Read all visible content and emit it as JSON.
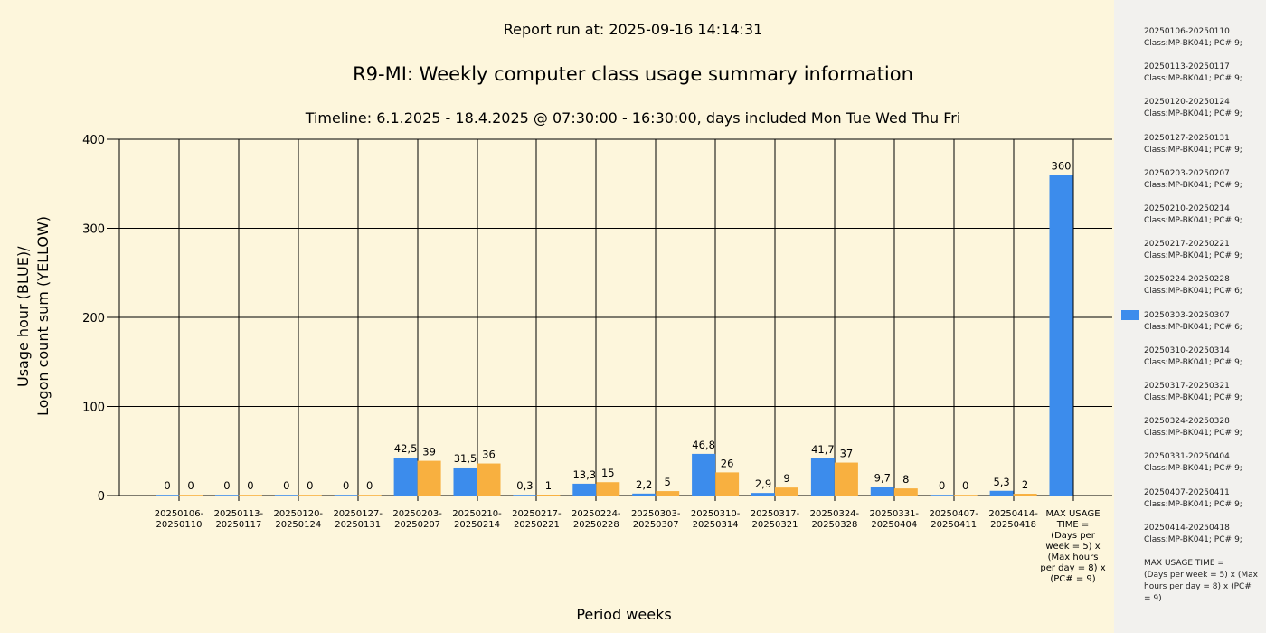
{
  "report_run": "Report run at: 2025-09-16 14:14:31",
  "chart_data": {
    "type": "bar",
    "title": "R9-MI: Weekly computer class usage summary information",
    "subtitle": "Timeline:  6.1.2025  - 18.4.2025  @  07:30:00 -  16:30:00, days included Mon Tue Wed Thu Fri",
    "xlabel": "Period weeks",
    "ylabel_line1": "Usage hour (BLUE)/",
    "ylabel_line2": "Logon count sum (YELLOW)",
    "ylim": [
      0,
      400
    ],
    "yticks": [
      "0",
      "100",
      "200",
      "300",
      "400"
    ],
    "categories": [
      [
        "20250106-",
        "20250110"
      ],
      [
        "20250113-",
        "20250117"
      ],
      [
        "20250120-",
        "20250124"
      ],
      [
        "20250127-",
        "20250131"
      ],
      [
        "20250203-",
        "20250207"
      ],
      [
        "20250210-",
        "20250214"
      ],
      [
        "20250217-",
        "20250221"
      ],
      [
        "20250224-",
        "20250228"
      ],
      [
        "20250303-",
        "20250307"
      ],
      [
        "20250310-",
        "20250314"
      ],
      [
        "20250317-",
        "20250321"
      ],
      [
        "20250324-",
        "20250328"
      ],
      [
        "20250331-",
        "20250404"
      ],
      [
        "20250407-",
        "20250411"
      ],
      [
        "20250414-",
        "20250418"
      ],
      [
        "MAX USAGE",
        "TIME =",
        "(Days per",
        "week = 5) x",
        "(Max hours",
        "per day = 8) x",
        "(PC# = 9)"
      ]
    ],
    "series": [
      {
        "color": "#3c8cec",
        "values": [
          0,
          0,
          0,
          0,
          42.5,
          31.5,
          0.3,
          13.3,
          2.2,
          46.8,
          2.9,
          41.7,
          9.7,
          0,
          5.3,
          360
        ],
        "labels": [
          "0",
          "0",
          "0",
          "0",
          "42,5",
          "31,5",
          "0,3",
          "13,3",
          "2,2",
          "46,8",
          "2,9",
          "41,7",
          "9,7",
          "0",
          "5,3",
          "360"
        ]
      },
      {
        "color": "#f8b040",
        "values": [
          0,
          0,
          0,
          0,
          39,
          36,
          1,
          15,
          5,
          26,
          9,
          37,
          8,
          0,
          2,
          null
        ],
        "labels": [
          "0",
          "0",
          "0",
          "0",
          "39",
          "36",
          "1",
          "15",
          "5",
          "26",
          "9",
          "37",
          "8",
          "0",
          "2",
          ""
        ]
      }
    ],
    "grid": true
  },
  "legend": {
    "swatch_color": "#3c8cec",
    "items": [
      [
        "20250106-20250110",
        "Class:MP-BK041; PC#:9;"
      ],
      [
        "20250113-20250117",
        "Class:MP-BK041; PC#:9;"
      ],
      [
        "20250120-20250124",
        "Class:MP-BK041; PC#:9;"
      ],
      [
        "20250127-20250131",
        "Class:MP-BK041; PC#:9;"
      ],
      [
        "20250203-20250207",
        "Class:MP-BK041; PC#:9;"
      ],
      [
        "20250210-20250214",
        "Class:MP-BK041; PC#:9;"
      ],
      [
        "20250217-20250221",
        "Class:MP-BK041; PC#:9;"
      ],
      [
        "20250224-20250228",
        "Class:MP-BK041; PC#:6;"
      ],
      [
        "20250303-20250307",
        "Class:MP-BK041; PC#:6;"
      ],
      [
        "20250310-20250314",
        "Class:MP-BK041; PC#:9;"
      ],
      [
        "20250317-20250321",
        "Class:MP-BK041; PC#:9;"
      ],
      [
        "20250324-20250328",
        "Class:MP-BK041; PC#:9;"
      ],
      [
        "20250331-20250404",
        "Class:MP-BK041; PC#:9;"
      ],
      [
        "20250407-20250411",
        "Class:MP-BK041; PC#:9;"
      ],
      [
        "20250414-20250418",
        "Class:MP-BK041; PC#:9;"
      ],
      [
        "MAX USAGE TIME =",
        "(Days per week = 5) x (Max",
        "hours per day = 8) x (PC#",
        "= 9)"
      ]
    ]
  }
}
